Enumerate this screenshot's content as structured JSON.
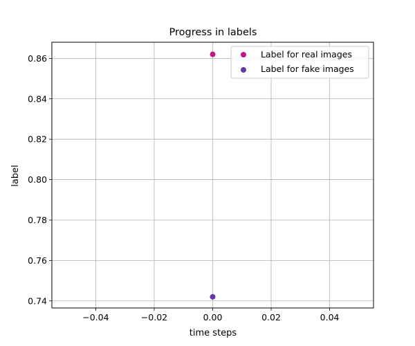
{
  "chart_data": {
    "type": "scatter",
    "title": "Progress in labels",
    "xlabel": "time steps",
    "ylabel": "label",
    "xlim": [
      -0.055,
      0.055
    ],
    "ylim": [
      0.7365,
      0.868
    ],
    "xticks": [
      -0.04,
      -0.02,
      0.0,
      0.02,
      0.04
    ],
    "xtick_labels": [
      "−0.04",
      "−0.02",
      "0.00",
      "0.02",
      "0.04"
    ],
    "yticks": [
      0.74,
      0.76,
      0.78,
      0.8,
      0.82,
      0.84,
      0.86
    ],
    "ytick_labels": [
      "0.74",
      "0.76",
      "0.78",
      "0.80",
      "0.82",
      "0.84",
      "0.86"
    ],
    "grid": true,
    "legend_position": "top-right",
    "series": [
      {
        "name": "Label for real images",
        "color": "#c71585",
        "x": [
          0.0
        ],
        "y": [
          0.862
        ]
      },
      {
        "name": "Label for fake images",
        "color": "#6a35a8",
        "x": [
          0.0
        ],
        "y": [
          0.742
        ]
      }
    ]
  }
}
